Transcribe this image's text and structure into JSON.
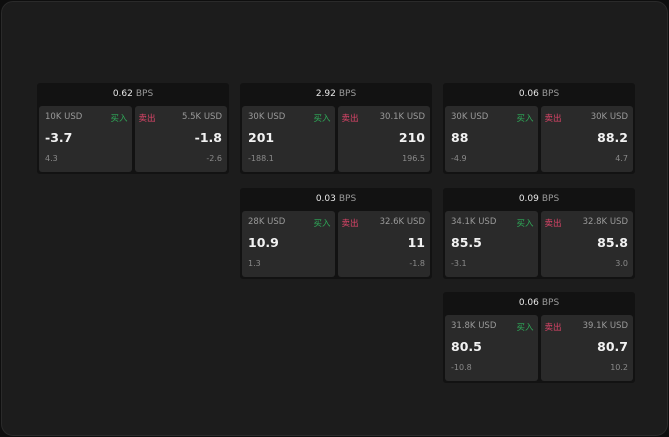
{
  "unit": "BPS",
  "buy_label": "买入",
  "sell_label": "卖出",
  "colors": {
    "buy": "#2fae5a",
    "sell": "#e0456a",
    "background": "#1c1c1c"
  },
  "panels": [
    {
      "spread": "0.62",
      "buy": {
        "size": "10K USD",
        "price": "-3.7",
        "change": "4.3"
      },
      "sell": {
        "size": "5.5K USD",
        "price": "-1.8",
        "change": "-2.6"
      }
    },
    {
      "spread": "2.92",
      "buy": {
        "size": "30K USD",
        "price": "201",
        "change": "-188.1"
      },
      "sell": {
        "size": "30.1K USD",
        "price": "210",
        "change": "196.5"
      }
    },
    {
      "spread": "0.06",
      "buy": {
        "size": "30K USD",
        "price": "88",
        "change": "-4.9"
      },
      "sell": {
        "size": "30K USD",
        "price": "88.2",
        "change": "4.7"
      }
    },
    {
      "spread": "0.03",
      "buy": {
        "size": "28K USD",
        "price": "10.9",
        "change": "1.3"
      },
      "sell": {
        "size": "32.6K USD",
        "price": "11",
        "change": "-1.8"
      }
    },
    {
      "spread": "0.09",
      "buy": {
        "size": "34.1K USD",
        "price": "85.5",
        "change": "-3.1"
      },
      "sell": {
        "size": "32.8K USD",
        "price": "85.8",
        "change": "3.0"
      }
    },
    {
      "spread": "0.06",
      "buy": {
        "size": "31.8K USD",
        "price": "80.5",
        "change": "-10.8"
      },
      "sell": {
        "size": "39.1K USD",
        "price": "80.7",
        "change": "10.2"
      }
    }
  ]
}
